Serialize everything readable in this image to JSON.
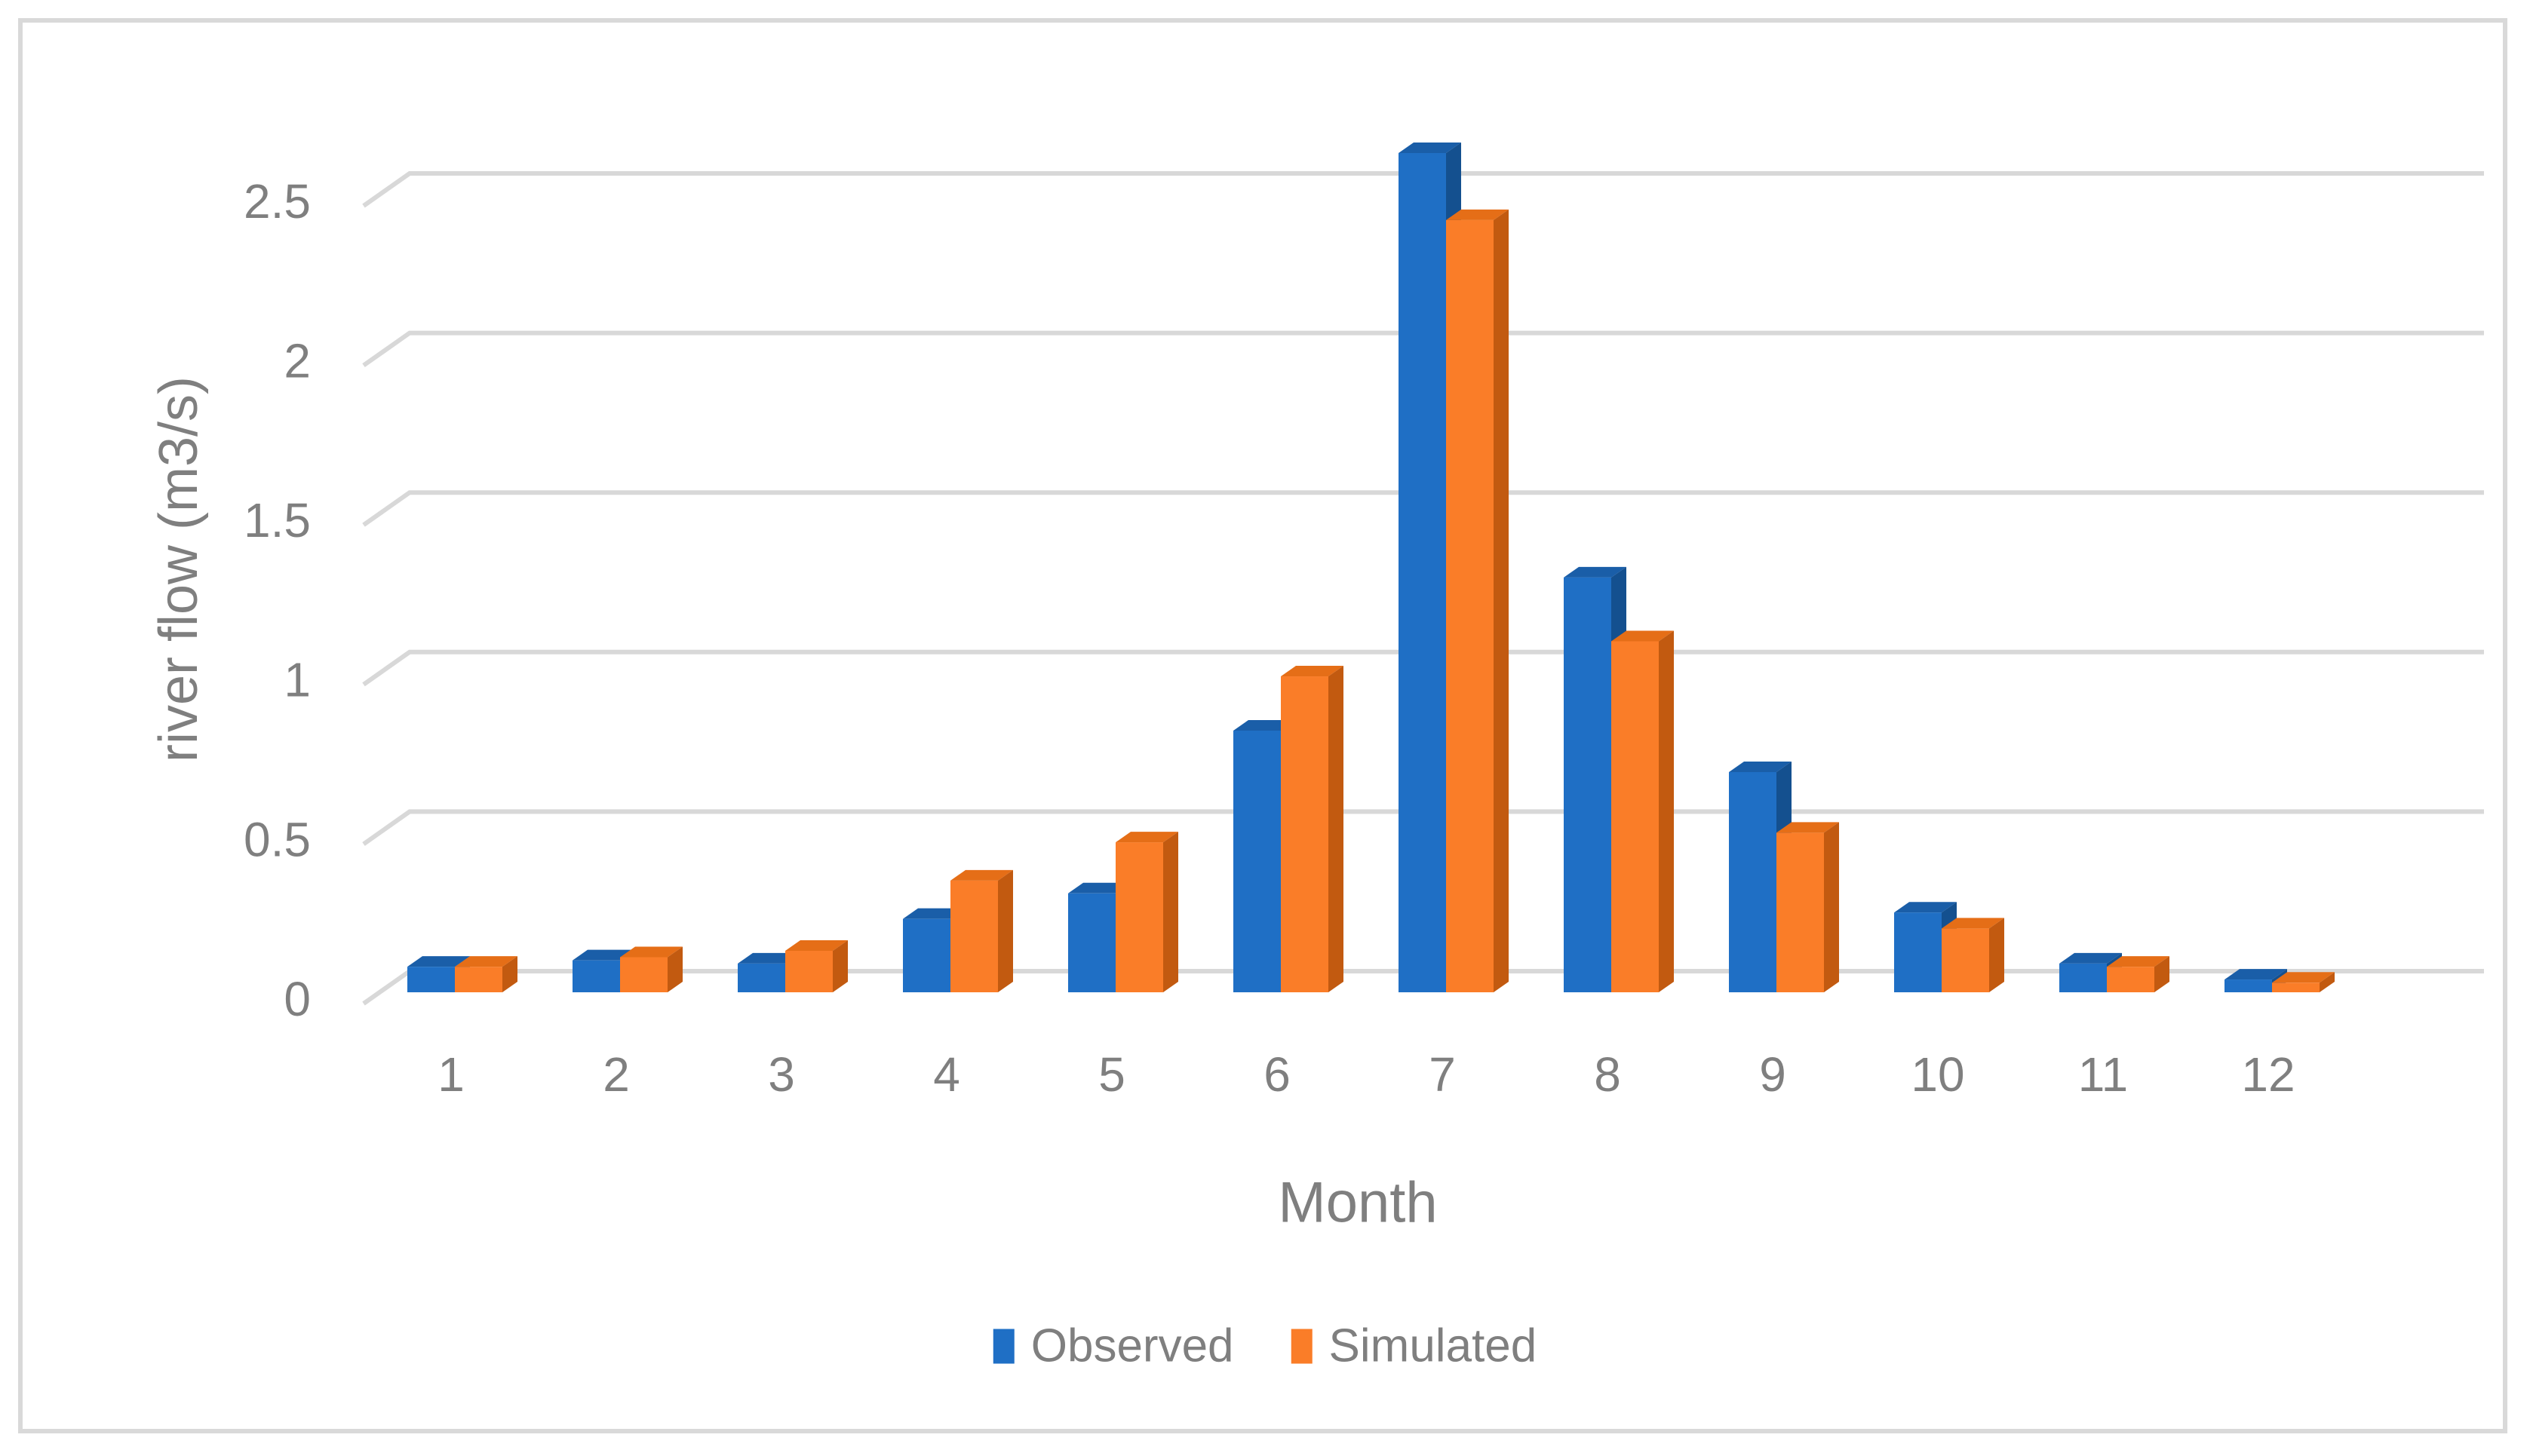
{
  "chart_data": {
    "type": "bar",
    "style": "3d-clustered-column",
    "title": "",
    "categories": [
      "1",
      "2",
      "3",
      "4",
      "5",
      "6",
      "7",
      "8",
      "9",
      "10",
      "11",
      "12"
    ],
    "series": [
      {
        "name": "Observed",
        "color": "#1F6FC5",
        "color_top": "#1A5EA8",
        "color_side": "#14508F",
        "values": [
          0.08,
          0.1,
          0.09,
          0.23,
          0.31,
          0.82,
          2.63,
          1.3,
          0.69,
          0.25,
          0.09,
          0.04
        ]
      },
      {
        "name": "Simulated",
        "color": "#FA7D28",
        "color_top": "#E56E17",
        "color_side": "#C25A10",
        "values": [
          0.08,
          0.11,
          0.13,
          0.35,
          0.47,
          0.99,
          2.42,
          1.1,
          0.5,
          0.2,
          0.08,
          0.03
        ]
      }
    ],
    "xlabel": "Month",
    "ylabel": "river flow (m3/s)",
    "ylim": [
      0,
      2.5
    ],
    "yticks": [
      0,
      0.5,
      1,
      1.5,
      2,
      2.5
    ],
    "ytick_labels": [
      "0",
      "0.5",
      "1",
      "1.5",
      "2",
      "2.5"
    ],
    "grid": true,
    "legend_position": "bottom-center",
    "gridline_color": "#D8D8D8",
    "text_color": "#7F7F7F",
    "border_color": "#D9D9D9",
    "background_color": "#FFFFFF"
  }
}
